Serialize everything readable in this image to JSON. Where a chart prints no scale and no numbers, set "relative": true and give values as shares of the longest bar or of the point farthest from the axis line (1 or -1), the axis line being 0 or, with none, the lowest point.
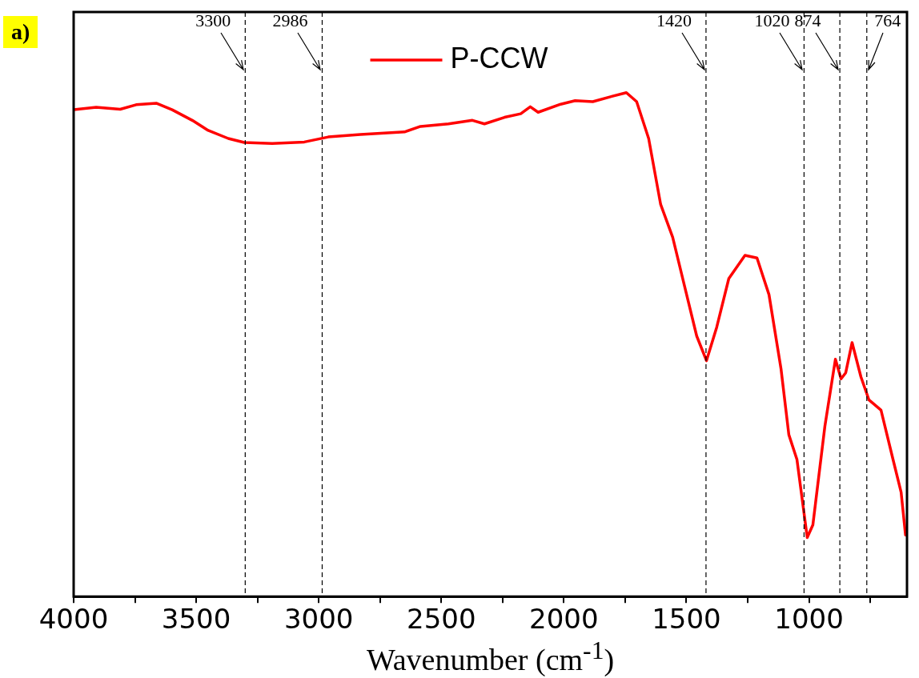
{
  "chart_data": {
    "type": "line",
    "xlabel": "Wavenumber (cm$^{-1}$)",
    "annotations": [
      "a)"
    ],
    "relative": true,
    "legend": "top",
    "marker": "none",
    "line_style": "solid",
    "grid": false,
    "xlim": [
      4000,
      600
    ],
    "xticks": [
      4000,
      {
        "value": 3750,
        "label": null
      },
      3500,
      {
        "value": 3250,
        "label": null
      },
      3000,
      {
        "value": 2750,
        "label": null
      },
      2500,
      {
        "value": 2250,
        "label": null
      },
      2000,
      {
        "value": 1750,
        "label": null
      },
      1500,
      {
        "value": 1250,
        "label": null
      },
      1000,
      {
        "value": 750,
        "label": null
      }
    ],
    "ref_lines": [
      {
        "axis": "x",
        "value": 3300,
        "label": "3300",
        "line_style": "dashed",
        "color": "#000000"
      },
      {
        "axis": "x",
        "value": 2986,
        "label": "2986",
        "line_style": "dashed",
        "color": "#000000"
      },
      {
        "axis": "x",
        "value": 1420,
        "label": "1420",
        "line_style": "dashed",
        "color": "#000000"
      },
      {
        "axis": "x",
        "value": 1020,
        "label": "1020",
        "line_style": "dashed",
        "color": "#000000"
      },
      {
        "axis": "x",
        "value": 874,
        "label": "874",
        "line_style": "dashed",
        "color": "#000000"
      },
      {
        "axis": "x",
        "value": 764,
        "label": "764",
        "line_style": "dashed",
        "color": "#000000"
      }
    ],
    "x": [
      4000,
      3908,
      3810,
      3745,
      3663,
      3598,
      3516,
      3451,
      3369,
      3304,
      3190,
      3059,
      2961,
      2830,
      2650,
      2585,
      2471,
      2373,
      2324,
      2242,
      2176,
      2137,
      2105,
      2013,
      1954,
      1882,
      1801,
      1745,
      1703,
      1654,
      1605,
      1556,
      1507,
      1458,
      1418,
      1376,
      1327,
      1261,
      1212,
      1163,
      1114,
      1082,
      1049,
      1007,
      984,
      935,
      892,
      869,
      850,
      824,
      788,
      755,
      706,
      657,
      624,
      606
    ],
    "series": [
      {
        "name": "P-CCW",
        "color": "#ff0000",
        "values": [
          0.966,
          0.971,
          0.967,
          0.976,
          0.979,
          0.966,
          0.945,
          0.925,
          0.909,
          0.901,
          0.899,
          0.902,
          0.912,
          0.917,
          0.922,
          0.933,
          0.938,
          0.945,
          0.938,
          0.951,
          0.958,
          0.972,
          0.961,
          0.977,
          0.984,
          0.982,
          0.993,
          1.0,
          0.982,
          0.909,
          0.778,
          0.713,
          0.615,
          0.517,
          0.468,
          0.535,
          0.631,
          0.677,
          0.672,
          0.599,
          0.452,
          0.321,
          0.272,
          0.117,
          0.142,
          0.338,
          0.471,
          0.432,
          0.444,
          0.504,
          0.436,
          0.39,
          0.37,
          0.272,
          0.207,
          0.122
        ]
      }
    ]
  }
}
